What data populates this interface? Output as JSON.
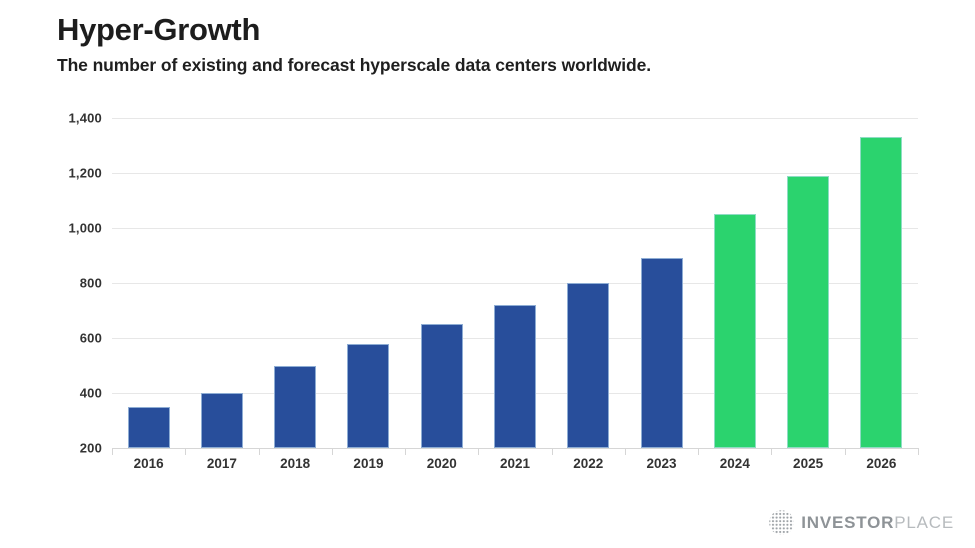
{
  "header": {
    "title": "Hyper-Growth",
    "subtitle": "The number of existing and forecast hyperscale data centers worldwide."
  },
  "chart_data": {
    "type": "bar",
    "title": "Hyper-Growth",
    "subtitle": "The number of existing and forecast hyperscale data centers worldwide.",
    "categories": [
      "2016",
      "2017",
      "2018",
      "2019",
      "2020",
      "2021",
      "2022",
      "2023",
      "2024",
      "2025",
      "2026"
    ],
    "values": [
      350,
      400,
      500,
      580,
      650,
      720,
      800,
      890,
      1050,
      1190,
      1330
    ],
    "series": [
      {
        "name": "existing",
        "color": "#284e9b",
        "start_index": 0,
        "end_index": 7
      },
      {
        "name": "forecast",
        "color": "#2bd36e",
        "start_index": 8,
        "end_index": 10
      }
    ],
    "forecast_start_index": 8,
    "ylim": [
      200,
      1400
    ],
    "yticks": [
      {
        "value": 1400,
        "label": "1,400"
      },
      {
        "value": 1200,
        "label": "1,200"
      },
      {
        "value": 1000,
        "label": "1,000"
      },
      {
        "value": 800,
        "label": "800"
      },
      {
        "value": 600,
        "label": "600"
      },
      {
        "value": 400,
        "label": "400"
      },
      {
        "value": 200,
        "label": "200"
      }
    ],
    "grid": true,
    "legend_position": "none",
    "colors": {
      "existing_bar": "#284e9b",
      "forecast_bar": "#2bd36e",
      "gridline": "#e7e7e7"
    }
  },
  "footer": {
    "logo": {
      "icon": "dotted-globe-icon",
      "text_primary": "INVESTOR",
      "text_secondary": "PLACE"
    }
  }
}
